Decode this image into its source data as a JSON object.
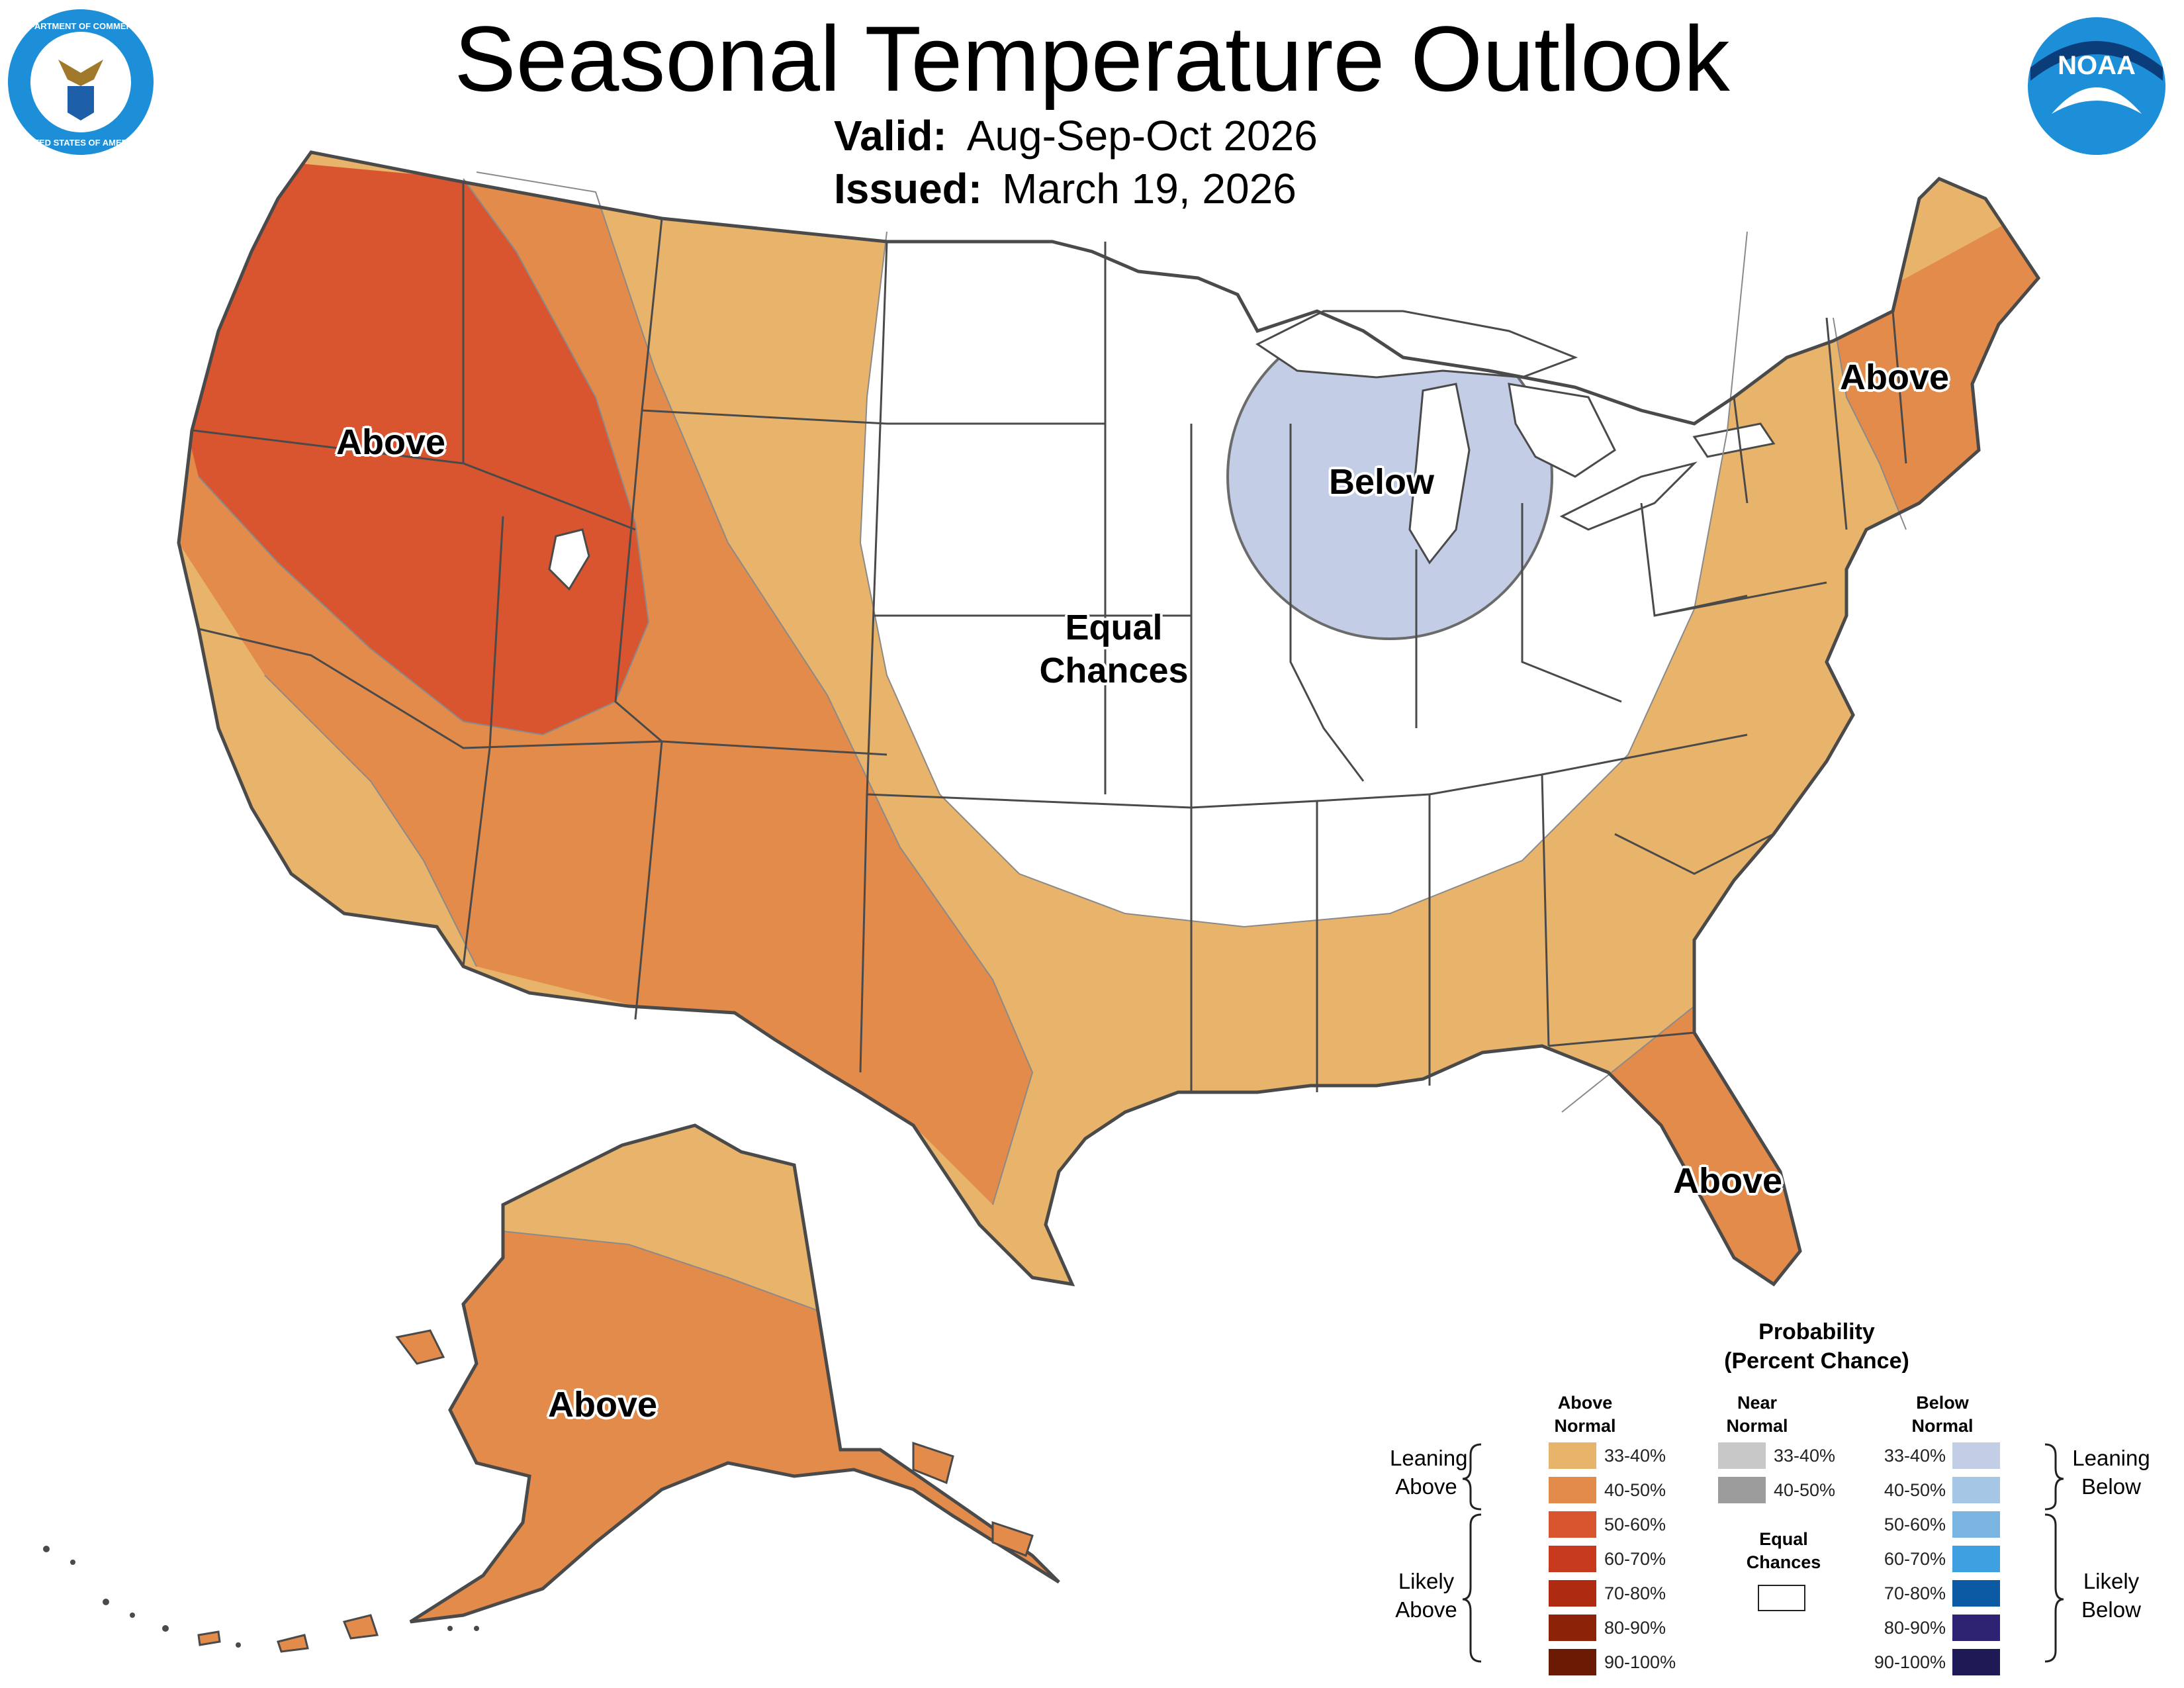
{
  "header": {
    "title": "Seasonal Temperature Outlook",
    "valid_label": "Valid:",
    "valid_value": "Aug-Sep-Oct 2026",
    "issued_label": "Issued:",
    "issued_value": "March 19, 2026"
  },
  "logos": {
    "commerce_seal_text_top": "DEPARTMENT OF COMMERCE",
    "commerce_seal_text_bottom": "UNITED STATES OF AMERICA",
    "noaa_text": "NOAA"
  },
  "map_labels": {
    "northwest": "Above",
    "great_lakes": "Below",
    "central_line1": "Equal",
    "central_line2": "Chances",
    "northeast": "Above",
    "florida": "Above",
    "alaska": "Above"
  },
  "legend": {
    "title_line1": "Probability",
    "title_line2": "(Percent Chance)",
    "above_head_line1": "Above",
    "above_head_line2": "Normal",
    "near_head_line1": "Near",
    "near_head_line2": "Normal",
    "below_head_line1": "Below",
    "below_head_line2": "Normal",
    "leaning_above_line1": "Leaning",
    "leaning_above_line2": "Above",
    "likely_above_line1": "Likely",
    "likely_above_line2": "Above",
    "leaning_below_line1": "Leaning",
    "leaning_below_line2": "Below",
    "likely_below_line1": "Likely",
    "likely_below_line2": "Below",
    "equal_line1": "Equal",
    "equal_line2": "Chances",
    "above_rows": [
      {
        "label": "33-40%",
        "color": "#e8b36a"
      },
      {
        "label": "40-50%",
        "color": "#e38b4a"
      },
      {
        "label": "50-60%",
        "color": "#d95530"
      },
      {
        "label": "60-70%",
        "color": "#c73a1e"
      },
      {
        "label": "70-80%",
        "color": "#ae2a10"
      },
      {
        "label": "80-90%",
        "color": "#8c2208"
      },
      {
        "label": "90-100%",
        "color": "#6b1a04"
      }
    ],
    "near_rows": [
      {
        "label": "33-40%",
        "color": "#c8c8c8"
      },
      {
        "label": "40-50%",
        "color": "#9c9c9c"
      }
    ],
    "below_rows": [
      {
        "label": "33-40%",
        "color": "#c3cde6"
      },
      {
        "label": "40-50%",
        "color": "#a5c6e5"
      },
      {
        "label": "50-60%",
        "color": "#7ab5e2"
      },
      {
        "label": "60-70%",
        "color": "#3ea0e0"
      },
      {
        "label": "70-80%",
        "color": "#0b5aa3"
      },
      {
        "label": "80-90%",
        "color": "#2e2272"
      },
      {
        "label": "90-100%",
        "color": "#1d1a55"
      }
    ]
  },
  "colors": {
    "lean_above": "#e8b36a",
    "above_40_50": "#e38b4a",
    "above_50_60": "#d95530",
    "lean_below": "#c3cde6",
    "equal": "#ffffff",
    "border": "#4a4a4a",
    "noaa_blue": "#1d8fd9"
  }
}
